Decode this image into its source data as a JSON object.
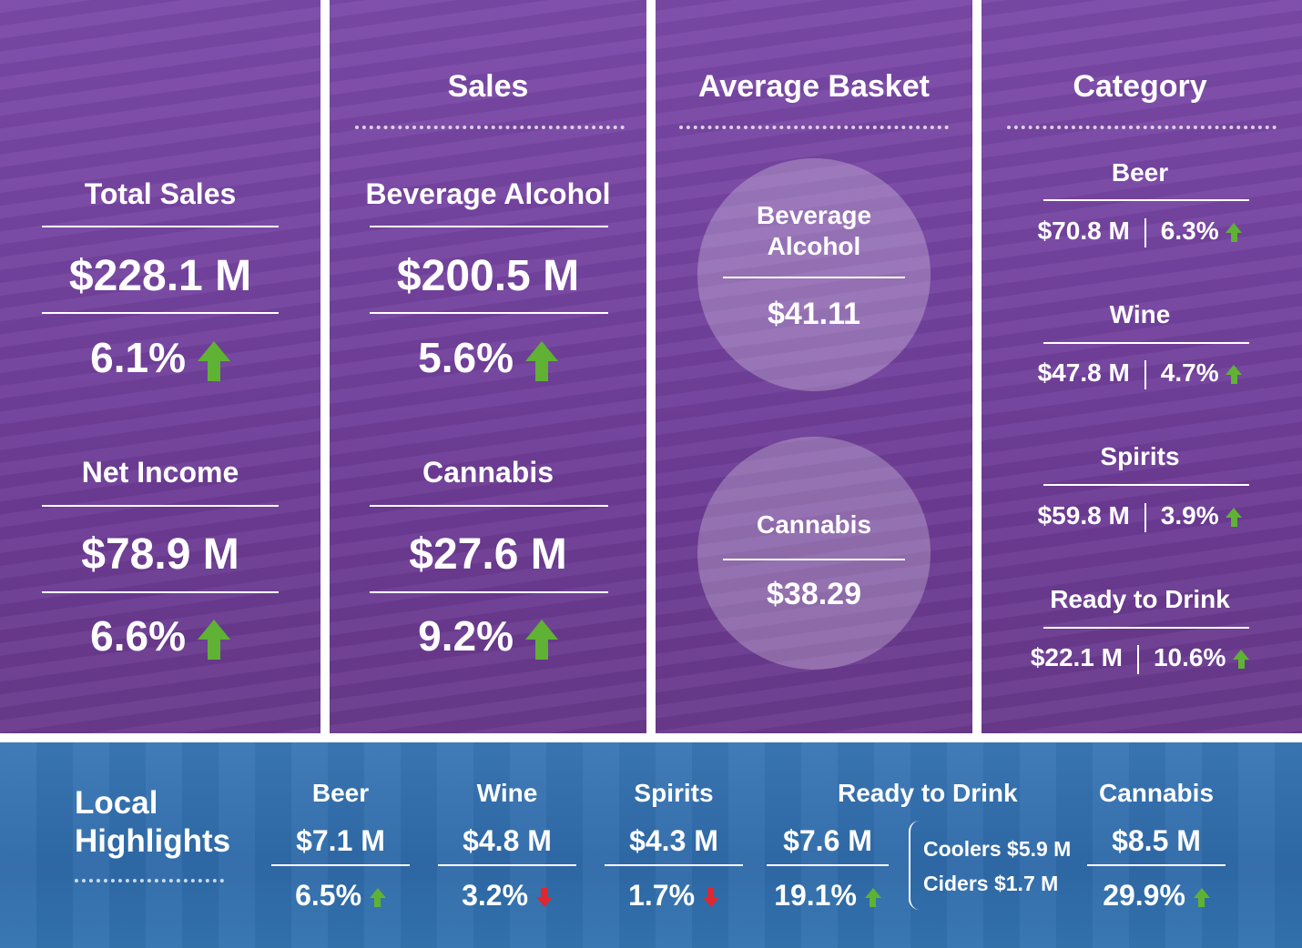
{
  "colors": {
    "accent_green": "#5fb233",
    "accent_red": "#e0272f",
    "purple": "#74439f",
    "blue": "#2f6aa8"
  },
  "col1": {
    "total_sales": {
      "label": "Total Sales",
      "value": "$228.1 M",
      "pct": "6.1%",
      "trend": "up"
    },
    "net_income": {
      "label": "Net Income",
      "value": "$78.9 M",
      "pct": "6.6%",
      "trend": "up"
    }
  },
  "sales": {
    "title": "Sales",
    "bev": {
      "label": "Beverage Alcohol",
      "value": "$200.5 M",
      "pct": "5.6%",
      "trend": "up"
    },
    "cannabis": {
      "label": "Cannabis",
      "value": "$27.6 M",
      "pct": "9.2%",
      "trend": "up"
    }
  },
  "basket": {
    "title": "Average Basket",
    "bev": {
      "label1": "Beverage",
      "label2": "Alcohol",
      "value": "$41.11"
    },
    "cannabis": {
      "label": "Cannabis",
      "value": "$38.29"
    }
  },
  "category": {
    "title": "Category",
    "items": [
      {
        "name": "Beer",
        "value": "$70.8 M",
        "pct": "6.3%",
        "trend": "up"
      },
      {
        "name": "Wine",
        "value": "$47.8 M",
        "pct": "4.7%",
        "trend": "up"
      },
      {
        "name": "Spirits",
        "value": "$59.8 M",
        "pct": "3.9%",
        "trend": "up"
      },
      {
        "name": "Ready to Drink",
        "value": "$22.1 M",
        "pct": "10.6%",
        "trend": "up"
      }
    ]
  },
  "local": {
    "title1": "Local",
    "title2": "Highlights",
    "items": [
      {
        "name": "Beer",
        "value": "$7.1 M",
        "pct": "6.5%",
        "trend": "up"
      },
      {
        "name": "Wine",
        "value": "$4.8 M",
        "pct": "3.2%",
        "trend": "down"
      },
      {
        "name": "Spirits",
        "value": "$4.3 M",
        "pct": "1.7%",
        "trend": "down"
      },
      {
        "name": "Ready to Drink",
        "value": "$7.6 M",
        "pct": "19.1%",
        "trend": "up"
      },
      {
        "name": "Cannabis",
        "value": "$8.5 M",
        "pct": "29.9%",
        "trend": "up"
      }
    ],
    "rtd_breakdown": {
      "coolers": "Coolers $5.9 M",
      "ciders": "Ciders $1.7 M"
    }
  }
}
